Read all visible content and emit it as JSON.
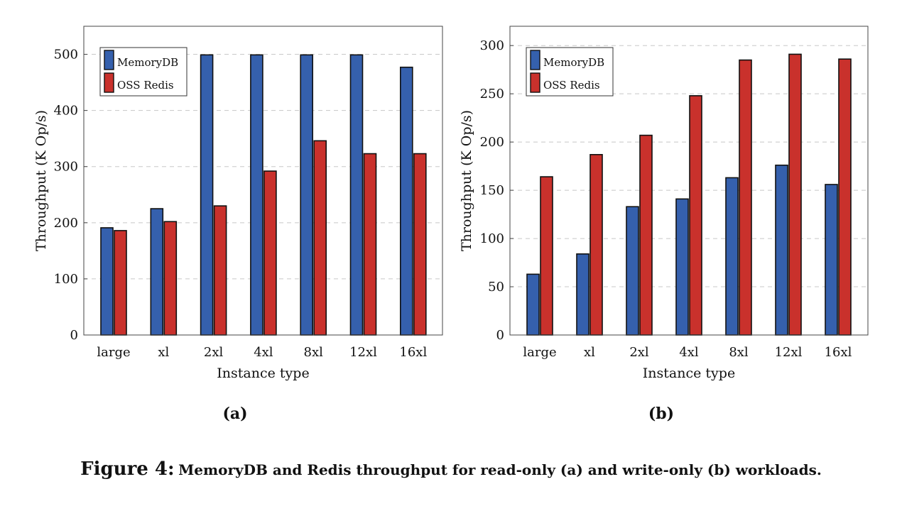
{
  "chart_data": [
    {
      "type": "bar",
      "panel_label": "(a)",
      "categories": [
        "large",
        "xl",
        "2xl",
        "4xl",
        "8xl",
        "12xl",
        "16xl"
      ],
      "series": [
        {
          "name": "MemoryDB",
          "color": "#3560ad",
          "values": [
            191,
            225,
            499,
            499,
            499,
            499,
            477
          ]
        },
        {
          "name": "OSS Redis",
          "color": "#c9312c",
          "values": [
            186,
            202,
            230,
            292,
            346,
            323,
            323
          ]
        }
      ],
      "xlabel": "Instance type",
      "ylabel": "Throughput (K Op/s)",
      "ylim": [
        0,
        550
      ],
      "yticks": [
        0,
        100,
        200,
        300,
        400,
        500
      ],
      "grid": true,
      "legend_position": "top-left"
    },
    {
      "type": "bar",
      "panel_label": "(b)",
      "categories": [
        "large",
        "xl",
        "2xl",
        "4xl",
        "8xl",
        "12xl",
        "16xl"
      ],
      "series": [
        {
          "name": "MemoryDB",
          "color": "#3560ad",
          "values": [
            63,
            84,
            133,
            141,
            163,
            176,
            156
          ]
        },
        {
          "name": "OSS Redis",
          "color": "#c9312c",
          "values": [
            164,
            187,
            207,
            248,
            285,
            291,
            286
          ]
        }
      ],
      "xlabel": "Instance type",
      "ylabel": "Throughput (K Op/s)",
      "ylim": [
        0,
        320
      ],
      "yticks": [
        0,
        50,
        100,
        150,
        200,
        250,
        300
      ],
      "grid": true,
      "legend_position": "top-left"
    }
  ],
  "caption": {
    "label": "Figure 4:",
    "text": "MemoryDB and Redis throughput for read-only (a) and write-only (b) workloads."
  }
}
